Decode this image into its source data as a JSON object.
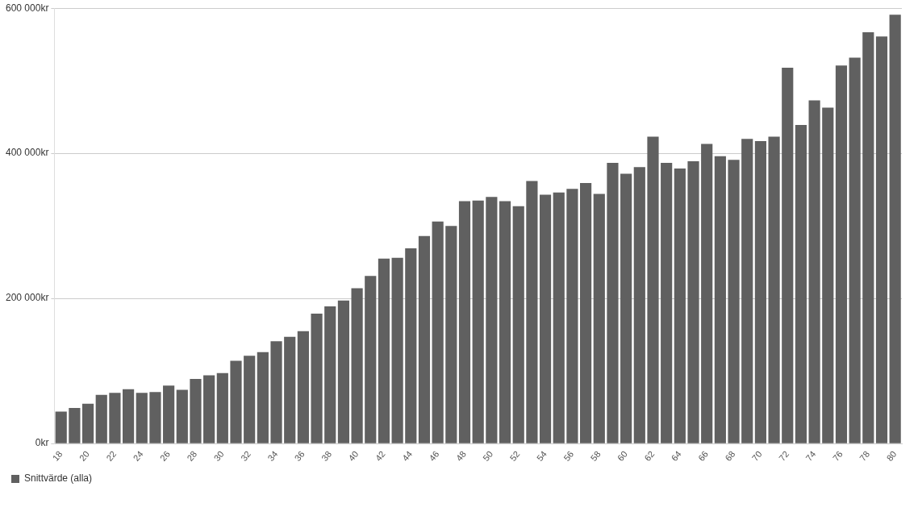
{
  "chart_data": {
    "type": "bar",
    "categories": [
      "18",
      null,
      "20",
      null,
      "22",
      null,
      "24",
      null,
      "26",
      null,
      "28",
      null,
      "30",
      null,
      "32",
      null,
      "34",
      null,
      "36",
      null,
      "38",
      null,
      "40",
      null,
      "42",
      null,
      "44",
      null,
      "46",
      null,
      "48",
      null,
      "50",
      null,
      "52",
      null,
      "54",
      null,
      "56",
      null,
      "58",
      null,
      "60",
      null,
      "62",
      null,
      "64",
      null,
      "66",
      null,
      "68",
      null,
      "70",
      null,
      "72",
      null,
      "74",
      null,
      "76",
      null,
      "78",
      null,
      "80"
    ],
    "series": [
      {
        "name": "Snittvärde (alla)",
        "color": "#606060",
        "values": [
          44000,
          49000,
          55000,
          67000,
          70000,
          75000,
          70000,
          71000,
          80000,
          74000,
          89000,
          94000,
          97000,
          114000,
          121000,
          126000,
          141000,
          147000,
          155000,
          179000,
          189000,
          197000,
          214000,
          231000,
          255000,
          256000,
          269000,
          286000,
          306000,
          300000,
          334000,
          335000,
          340000,
          334000,
          327000,
          362000,
          343000,
          346000,
          351000,
          359000,
          344000,
          387000,
          372000,
          381000,
          423000,
          387000,
          379000,
          389000,
          413000,
          396000,
          391000,
          420000,
          417000,
          423000,
          518000,
          439000,
          473000,
          463000,
          521000,
          532000,
          567000,
          561000,
          591000
        ]
      }
    ],
    "ylim": [
      0,
      600000
    ],
    "yticks": [
      {
        "value": 0,
        "label": "0kr"
      },
      {
        "value": 200000,
        "label": "200 000kr"
      },
      {
        "value": 400000,
        "label": "400 000kr"
      },
      {
        "value": 600000,
        "label": "600 000kr"
      }
    ],
    "grid": "y",
    "legend": "bottom left"
  }
}
